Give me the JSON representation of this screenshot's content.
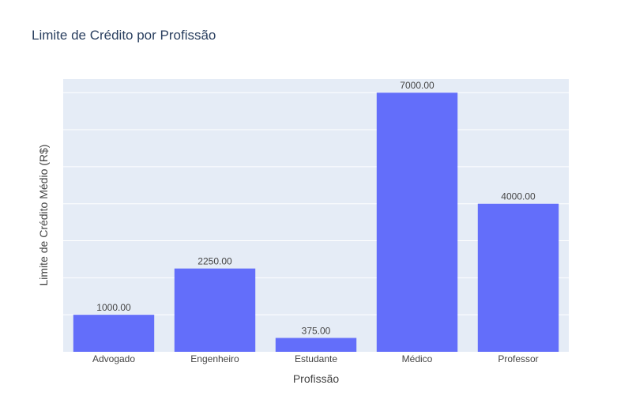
{
  "chart_data": {
    "type": "bar",
    "title": "Limite de Crédito por Profissão",
    "xlabel": "Profissão",
    "ylabel": "Limite de Crédito Médio (R$)",
    "categories": [
      "Advogado",
      "Engenheiro",
      "Estudante",
      "Médico",
      "Professor"
    ],
    "values": [
      1000,
      2250,
      375,
      7000,
      4000
    ],
    "value_labels": [
      "1000.00",
      "2250.00",
      "375.00",
      "7000.00",
      "4000.00"
    ],
    "ylim": [
      0,
      7368
    ],
    "gridlines": [
      1000,
      2000,
      3000,
      4000,
      5000,
      6000,
      7000
    ],
    "y_tick_labels_visible": false,
    "grid": true,
    "colors": {
      "bar": "#636efa",
      "plot_background": "#e5ecf6",
      "gridline": "#ffffff",
      "text": "#2a3f5f",
      "label_text": "#444444"
    }
  }
}
